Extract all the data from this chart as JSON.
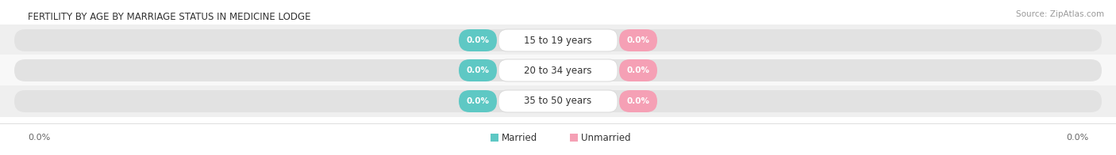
{
  "title": "FERTILITY BY AGE BY MARRIAGE STATUS IN MEDICINE LODGE",
  "source": "Source: ZipAtlas.com",
  "age_groups": [
    "15 to 19 years",
    "20 to 34 years",
    "35 to 50 years"
  ],
  "married_values": [
    0.0,
    0.0,
    0.0
  ],
  "unmarried_values": [
    0.0,
    0.0,
    0.0
  ],
  "married_color": "#5ec8c4",
  "unmarried_color": "#f5a0b5",
  "bar_bg_color": "#e2e2e2",
  "row_bg_even": "#efefef",
  "row_bg_odd": "#f8f8f8",
  "title_fontsize": 8.5,
  "source_fontsize": 7.5,
  "value_fontsize": 7.5,
  "age_fontsize": 8.5,
  "legend_fontsize": 8.5,
  "axis_tick_fontsize": 8.0,
  "axis_label_color": "#666666",
  "title_color": "#333333",
  "age_label_color": "#333333",
  "source_color": "#999999",
  "background_color": "#ffffff"
}
